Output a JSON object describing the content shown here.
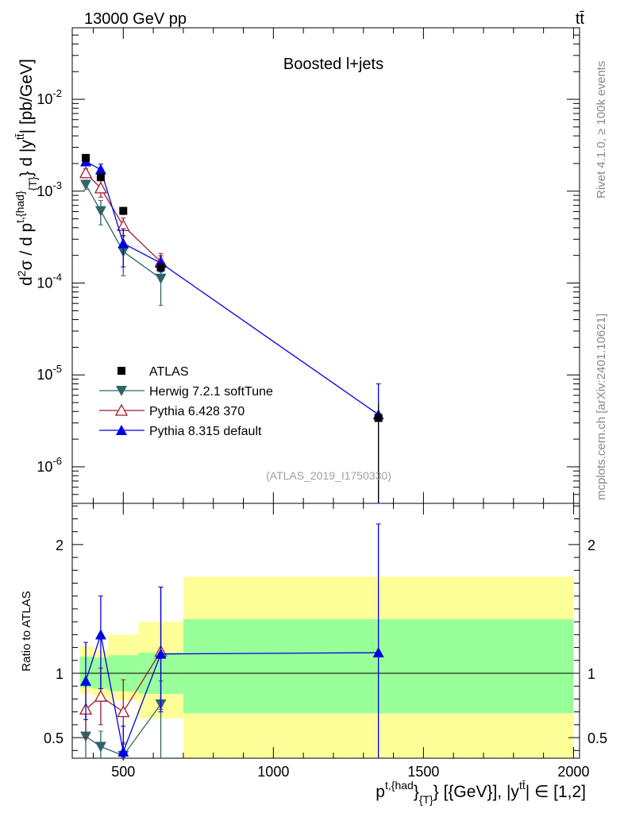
{
  "header": {
    "energy": "13000 GeV pp",
    "process": "tt̄"
  },
  "side_labels": {
    "rivet": "Rivet 4.1.0, ≥ 100k events",
    "mcplots": "mcplots.cern.ch [arXiv:2401.10621]"
  },
  "chart_data": {
    "type": "scatter",
    "title": "Boosted l+jets",
    "watermark": "(ATLAS_2019_I1750330)",
    "xlabel": "p^{t,{had}}_{T} [{GeV}], |y^{tt̄}| ∈ [1,2]",
    "xlabel_parts": {
      "p": "p",
      "sup": "t,{had",
      "close": "}",
      "sub": "{T}",
      "rest": "} [{GeV}], |y",
      "sup2": "tt̄",
      "tail": "| ∈ [1,2]"
    },
    "ylabel": "d²σ / d p^{t,{had}}_{T} d |y^{tt̄}| [pb/GeV]",
    "ylabel_parts": {
      "a": "d",
      "a_sup": "2",
      "b": "σ / d p",
      "b_sup": "t,{had}",
      "b_sub": "{T}",
      "c": "} d |y",
      "c_sup": "tt̄",
      "d": "| [pb/GeV]"
    },
    "xlim": [
      330,
      2020
    ],
    "ylim_log": [
      4e-07,
      0.06
    ],
    "ratio_ylabel": "Ratio to ATLAS",
    "ratio_ylim": [
      0.34,
      2.32
    ],
    "x_ticks": [
      {
        "v": 500,
        "label": "500"
      },
      {
        "v": 1000,
        "label": "1000"
      },
      {
        "v": 1500,
        "label": "1500"
      },
      {
        "v": 2000,
        "label": "2000"
      }
    ],
    "y_ticks": [
      {
        "v": 0.01,
        "base": "10",
        "exp": "-2"
      },
      {
        "v": 0.001,
        "base": "10",
        "exp": "-3"
      },
      {
        "v": 0.0001,
        "base": "10",
        "exp": "-4"
      },
      {
        "v": 1e-05,
        "base": "10",
        "exp": "-5"
      },
      {
        "v": 1e-06,
        "base": "10",
        "exp": "-6"
      }
    ],
    "ratio_ticks": [
      {
        "v": 0.5,
        "label": "0.5"
      },
      {
        "v": 1,
        "label": "1"
      },
      {
        "v": 2,
        "label": "2"
      }
    ],
    "bins": [
      {
        "lo": 355,
        "hi": 400
      },
      {
        "lo": 400,
        "hi": 450
      },
      {
        "lo": 450,
        "hi": 550
      },
      {
        "lo": 550,
        "hi": 700
      },
      {
        "lo": 700,
        "hi": 2000
      }
    ],
    "data": {
      "name": "ATLAS",
      "x": [
        375,
        425,
        500,
        625,
        1350
      ],
      "y": [
        0.0023,
        0.00142,
        0.00061,
        0.000148,
        3.4e-06
      ],
      "err_lo": [
        0.0002,
        0.00013,
        6e-05,
        1.5e-05,
        3.4e-06
      ],
      "err_hi": [
        0.0002,
        0.00013,
        6e-05,
        1.5e-05,
        1.5e-06
      ]
    },
    "bands_inner": [
      {
        "lo": 355,
        "hi": 400,
        "min": 0.89,
        "max": 1.13
      },
      {
        "lo": 400,
        "hi": 450,
        "min": 0.88,
        "max": 1.12
      },
      {
        "lo": 450,
        "hi": 550,
        "min": 0.86,
        "max": 1.14
      },
      {
        "lo": 550,
        "hi": 700,
        "min": 0.84,
        "max": 1.16
      },
      {
        "lo": 700,
        "hi": 2000,
        "min": 0.69,
        "max": 1.42
      }
    ],
    "bands_outer": [
      {
        "lo": 355,
        "hi": 400,
        "min": 0.84,
        "max": 1.21
      },
      {
        "lo": 400,
        "hi": 450,
        "min": 0.82,
        "max": 1.18
      },
      {
        "lo": 450,
        "hi": 550,
        "min": 0.79,
        "max": 1.3
      },
      {
        "lo": 550,
        "hi": 700,
        "min": 0.65,
        "max": 1.4
      },
      {
        "lo": 700,
        "hi": 2000,
        "min": 0.34,
        "max": 1.75
      }
    ],
    "series": [
      {
        "name": "Herwig 7.2.1 softTune",
        "color": "#2f6468",
        "marker": "tri-down-filled",
        "x": [
          375,
          425,
          500,
          625
        ],
        "y": [
          0.00118,
          0.00061,
          0.00022,
          0.000112
        ],
        "err_lo": [
          0.00014,
          0.00018,
          0.0001,
          5.5e-05
        ],
        "err_hi": [
          0.00014,
          0.00018,
          0.0001,
          3.5e-05
        ],
        "ratio": [
          0.51,
          0.43,
          0.36,
          0.76
        ],
        "ratio_err_lo": [
          0.2,
          0.12,
          0.1,
          0.42
        ],
        "ratio_err_hi": [
          0.2,
          0.12,
          0.1,
          0.18
        ]
      },
      {
        "name": "Pythia 6.428 370",
        "color": "#9b1b30",
        "marker": "tri-up-open",
        "x": [
          375,
          425,
          500,
          625
        ],
        "y": [
          0.00158,
          0.00108,
          0.00042,
          0.00017
        ],
        "err_lo": [
          0.00017,
          0.00022,
          9e-05,
          3e-05
        ],
        "err_hi": [
          0.00017,
          0.00022,
          9e-05,
          4e-05
        ],
        "ratio": [
          0.72,
          0.82,
          0.7,
          1.17
        ],
        "ratio_err_lo": [
          0.22,
          0.22,
          0.25,
          0.45
        ],
        "ratio_err_hi": [
          0.22,
          0.22,
          0.25,
          0.5
        ]
      },
      {
        "name": "Pythia 8.315 default",
        "color": "#0000e6",
        "marker": "tri-up-filled",
        "x": [
          375,
          425,
          500,
          625,
          1350
        ],
        "y": [
          0.0021,
          0.00172,
          0.00027,
          0.000165,
          3.7e-06
        ],
        "err_lo": [
          0.00016,
          0.00025,
          0.00012,
          3.3e-05,
          3.7e-06
        ],
        "err_hi": [
          0.00016,
          0.00025,
          0.00012,
          3.3e-05,
          4.3e-06
        ],
        "ratio": [
          0.94,
          1.3,
          0.39,
          1.15,
          1.16
        ],
        "ratio_err_lo": [
          0.3,
          0.42,
          0.2,
          0.45,
          0.82
        ],
        "ratio_err_hi": [
          0.3,
          0.3,
          0.2,
          0.52,
          1.0
        ]
      }
    ],
    "legend": [
      {
        "label": "ATLAS",
        "marker": "square",
        "color": "#000000"
      },
      {
        "label": "Herwig 7.2.1 softTune",
        "marker": "tri-down-filled",
        "color": "#2f6468"
      },
      {
        "label": "Pythia 6.428 370",
        "marker": "tri-up-open",
        "color": "#9b1b30"
      },
      {
        "label": "Pythia 8.315 default",
        "marker": "tri-up-filled",
        "color": "#0000e6"
      }
    ]
  }
}
